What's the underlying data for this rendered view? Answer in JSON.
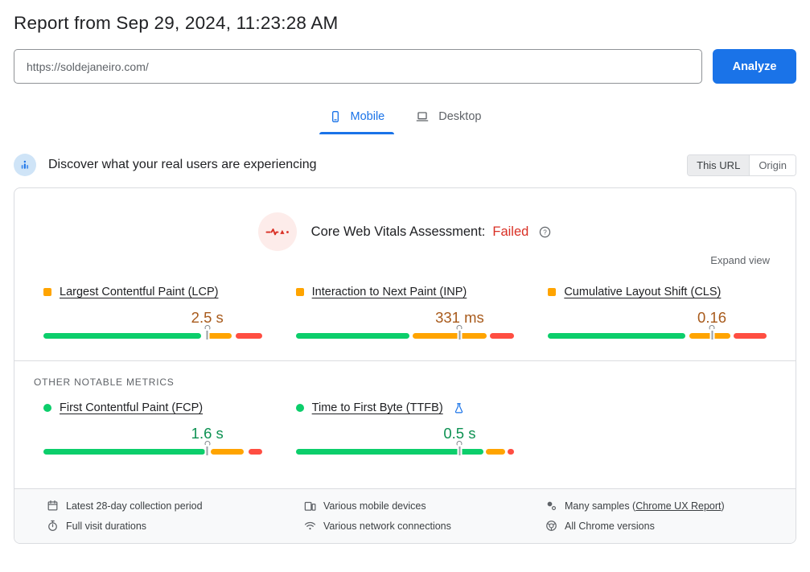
{
  "page": {
    "title": "Report from Sep 29, 2024, 11:23:28 AM"
  },
  "url_bar": {
    "value": "https://soldejaneiro.com/",
    "analyze_label": "Analyze"
  },
  "tabs": {
    "mobile_label": "Mobile",
    "desktop_label": "Desktop",
    "active": "Mobile"
  },
  "field_data": {
    "heading": "Discover what your real users are experiencing",
    "scope": {
      "this_url": "This URL",
      "origin": "Origin",
      "selected": "This URL"
    },
    "assessment_label": "Core Web Vitals Assessment:",
    "assessment_result": "Failed",
    "expand_label": "Expand view",
    "other_metrics_label": "OTHER NOTABLE METRICS",
    "core_metrics": [
      {
        "name": "Largest Contentful Paint (LCP)",
        "value": "2.5 s",
        "rating": "ni",
        "marker_pct": 75,
        "segments": {
          "green": 72,
          "orange": 12,
          "red": 12
        }
      },
      {
        "name": "Interaction to Next Paint (INP)",
        "value": "331 ms",
        "rating": "ni",
        "marker_pct": 75,
        "segments": {
          "green": 52,
          "orange": 34,
          "red": 11
        }
      },
      {
        "name": "Cumulative Layout Shift (CLS)",
        "value": "0.16",
        "rating": "ni",
        "marker_pct": 75,
        "segments": {
          "green": 63,
          "orange": 19,
          "red": 15
        }
      }
    ],
    "other_metrics": [
      {
        "name": "First Contentful Paint (FCP)",
        "value": "1.6 s",
        "rating": "good",
        "marker_pct": 75,
        "segments": {
          "green": 74,
          "orange": 15,
          "red": 6
        }
      },
      {
        "name": "Time to First Byte (TTFB)",
        "value": "0.5 s",
        "rating": "good",
        "experimental": true,
        "marker_pct": 75,
        "segments": {
          "green": 86,
          "orange": 9,
          "red": 3
        }
      }
    ],
    "footer": {
      "collection_period": "Latest 28-day collection period",
      "visit_durations": "Full visit durations",
      "devices": "Various mobile devices",
      "connections": "Various network connections",
      "samples_prefix": "Many samples (",
      "samples_link": "Chrome UX Report",
      "samples_suffix": ")",
      "chrome_versions": "All Chrome versions"
    }
  },
  "colors": {
    "accent_blue": "#1a73e8",
    "good_green": "#0cce6b",
    "ni_orange": "#ffa400",
    "poor_red": "#ff4e42",
    "failed_red": "#d93025",
    "good_text": "#0d9152",
    "ni_text": "#a85a1b"
  }
}
